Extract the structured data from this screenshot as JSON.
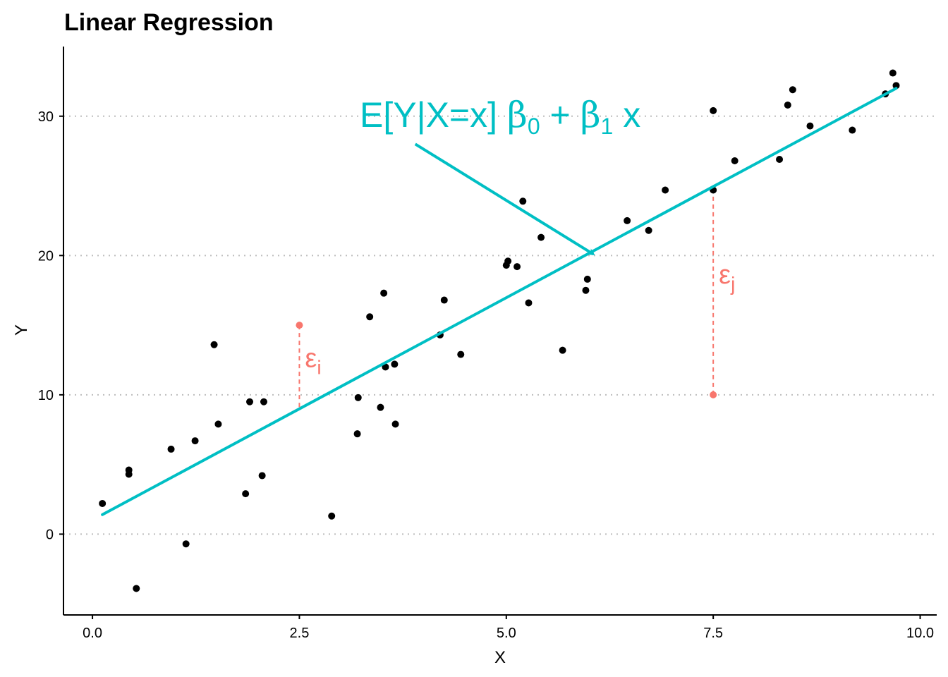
{
  "chart_data": {
    "type": "scatter",
    "title": "Linear Regression",
    "xlabel": "X",
    "ylabel": "Y",
    "xlim": [
      -0.35,
      10.2
    ],
    "ylim": [
      -5.8,
      35
    ],
    "xticks": [
      0,
      2.5,
      5,
      7.5,
      10
    ],
    "xtick_labels": [
      "0.0",
      "2.5",
      "5.0",
      "7.5",
      "10.0"
    ],
    "yticks": [
      0,
      10,
      20,
      30
    ],
    "ytick_labels": [
      "0",
      "10",
      "20",
      "30"
    ],
    "grid": "horizontal dotted",
    "colors": {
      "points": "#000000",
      "line": "#00BFC4",
      "residual": "#F8766D",
      "grid": "#bdbdbd"
    },
    "points": [
      {
        "x": 0.12,
        "y": 2.2
      },
      {
        "x": 0.44,
        "y": 4.6
      },
      {
        "x": 0.44,
        "y": 4.3
      },
      {
        "x": 0.53,
        "y": -3.9
      },
      {
        "x": 0.95,
        "y": 6.1
      },
      {
        "x": 1.13,
        "y": -0.7
      },
      {
        "x": 1.24,
        "y": 6.7
      },
      {
        "x": 1.47,
        "y": 13.6
      },
      {
        "x": 1.52,
        "y": 7.9
      },
      {
        "x": 1.85,
        "y": 2.9
      },
      {
        "x": 1.9,
        "y": 9.5
      },
      {
        "x": 2.05,
        "y": 4.2
      },
      {
        "x": 2.07,
        "y": 9.5
      },
      {
        "x": 2.89,
        "y": 1.3
      },
      {
        "x": 3.2,
        "y": 7.2
      },
      {
        "x": 3.21,
        "y": 9.8
      },
      {
        "x": 3.35,
        "y": 15.6
      },
      {
        "x": 3.48,
        "y": 9.1
      },
      {
        "x": 3.52,
        "y": 17.3
      },
      {
        "x": 3.54,
        "y": 12.0
      },
      {
        "x": 3.65,
        "y": 12.2
      },
      {
        "x": 3.66,
        "y": 7.9
      },
      {
        "x": 4.2,
        "y": 14.3
      },
      {
        "x": 4.25,
        "y": 16.8
      },
      {
        "x": 4.45,
        "y": 12.9
      },
      {
        "x": 5.0,
        "y": 19.3
      },
      {
        "x": 5.02,
        "y": 19.6
      },
      {
        "x": 5.13,
        "y": 19.2
      },
      {
        "x": 5.2,
        "y": 23.9
      },
      {
        "x": 5.27,
        "y": 16.6
      },
      {
        "x": 5.42,
        "y": 21.3
      },
      {
        "x": 5.68,
        "y": 13.2
      },
      {
        "x": 5.96,
        "y": 17.5
      },
      {
        "x": 5.98,
        "y": 18.3
      },
      {
        "x": 6.46,
        "y": 22.5
      },
      {
        "x": 6.72,
        "y": 21.8
      },
      {
        "x": 6.92,
        "y": 24.7
      },
      {
        "x": 7.5,
        "y": 24.7
      },
      {
        "x": 7.5,
        "y": 30.4
      },
      {
        "x": 7.76,
        "y": 26.8
      },
      {
        "x": 8.3,
        "y": 26.9
      },
      {
        "x": 8.4,
        "y": 30.8
      },
      {
        "x": 8.46,
        "y": 31.9
      },
      {
        "x": 8.67,
        "y": 29.3
      },
      {
        "x": 9.18,
        "y": 29.0
      },
      {
        "x": 9.58,
        "y": 31.6
      },
      {
        "x": 9.67,
        "y": 33.1
      },
      {
        "x": 9.71,
        "y": 32.2
      }
    ],
    "regression_line": {
      "x": [
        0.12,
        9.71
      ],
      "y": [
        1.4,
        32.0
      ]
    },
    "residual_points": [
      {
        "x": 2.5,
        "y": 15
      },
      {
        "x": 7.5,
        "y": 10
      }
    ],
    "residual_segments": [
      {
        "x": 2.5,
        "y_from": 15,
        "y_to": 8.9
      },
      {
        "x": 7.5,
        "y_from": 10,
        "y_to": 24.8
      }
    ],
    "annotations": {
      "equation": {
        "main": "E[Y|X=x] ",
        "b0": "β",
        "b0_sub": "0",
        "plus": " + ",
        "b1": "β",
        "b1_sub": "1",
        "tail": " x"
      },
      "arrow": {
        "from": [
          3.9,
          28.0
        ],
        "to": [
          6.05,
          20.1
        ]
      },
      "eps_i": {
        "symbol": "ε",
        "sub": "i"
      },
      "eps_j": {
        "symbol": "ε",
        "sub": "j"
      }
    }
  }
}
